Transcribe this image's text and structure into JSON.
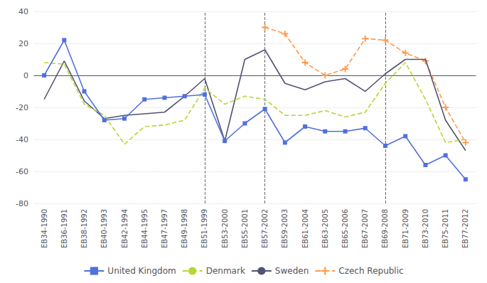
{
  "chart_data": {
    "type": "line",
    "categories": [
      "EB34-1990",
      "EB36-1991",
      "EB38-1992",
      "EB40-1993",
      "EB42-1994",
      "EB44-1995",
      "EB47-1997",
      "EB49-1998",
      "EB51-1999",
      "EB53-2000",
      "EB55-2001",
      "EB57-2002",
      "EB59-2003",
      "EB61-2004",
      "EB63-2005",
      "EB65-2006",
      "EB67-2007",
      "EB69-2008",
      "EB71-2009",
      "EB73-2010",
      "EB75-2011",
      "EB77-2012"
    ],
    "series": [
      {
        "name": "United Kingdom",
        "line_style": "solid",
        "marker": "square",
        "values": [
          0,
          22,
          -10,
          -28,
          -27,
          -15,
          -14,
          -13,
          -12,
          -41,
          -30,
          -21,
          -42,
          -32,
          -35,
          -35,
          -33,
          -44,
          -38,
          -56,
          -50,
          -65
        ]
      },
      {
        "name": "Denmark",
        "line_style": "dashed",
        "marker": "none",
        "values": [
          8,
          7,
          -18,
          -25,
          -43,
          -32,
          -31,
          -28,
          -8,
          -18,
          -13,
          -15,
          -25,
          -25,
          -22,
          -26,
          -23,
          -5,
          8,
          -15,
          -42,
          -40
        ]
      },
      {
        "name": "Sweden",
        "line_style": "solid",
        "marker": "none",
        "values": [
          -15,
          9,
          -16,
          -27,
          -25,
          -24,
          -23,
          -13,
          -2,
          -41,
          10,
          16,
          -5,
          -9,
          -4,
          -2,
          -10,
          1,
          10,
          10,
          -28,
          -47
        ]
      },
      {
        "name": "Czech Republic",
        "line_style": "dashed",
        "marker": "plus",
        "values": [
          null,
          null,
          null,
          null,
          null,
          null,
          null,
          null,
          null,
          null,
          null,
          30,
          26,
          8,
          0,
          4,
          23,
          22,
          14,
          9,
          -20,
          -42
        ]
      }
    ],
    "vlines": [
      "EB51-1999",
      "EB57-2002",
      "EB69-2008"
    ],
    "ylim": [
      -80,
      40
    ],
    "yticks": [
      -80,
      -60,
      -40,
      -20,
      0,
      20,
      40
    ],
    "grid": true,
    "legend": "bottom"
  }
}
